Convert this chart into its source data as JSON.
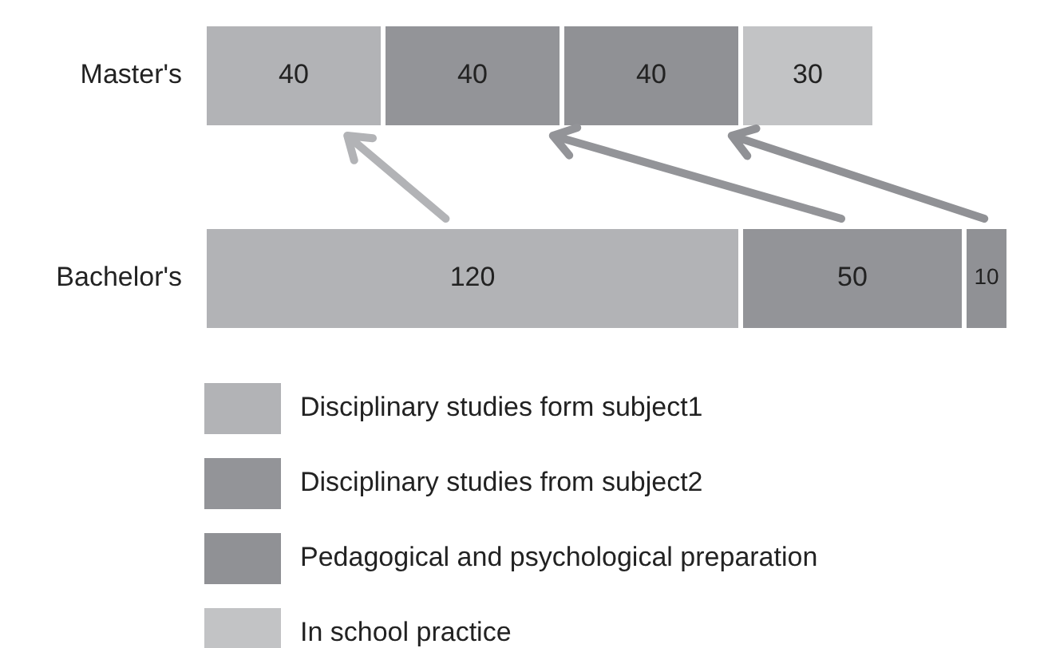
{
  "chart_data": {
    "type": "bar",
    "orientation": "horizontal",
    "stacked": true,
    "data_labels": true,
    "legend": "bottom",
    "categories": [
      "Master's",
      "Bachelor's"
    ],
    "series": [
      {
        "name": "Disciplinary studies form subject1",
        "color": "#b2b3b6",
        "values": [
          40,
          120
        ]
      },
      {
        "name": "Disciplinary studies from subject2",
        "color": "#939498",
        "values": [
          40,
          50
        ]
      },
      {
        "name": "Pedagogical and psychological preparation",
        "color": "#909195",
        "values": [
          40,
          10
        ]
      },
      {
        "name": "In school practice",
        "color": "#c2c3c5",
        "values": [
          30,
          null
        ]
      }
    ]
  }
}
